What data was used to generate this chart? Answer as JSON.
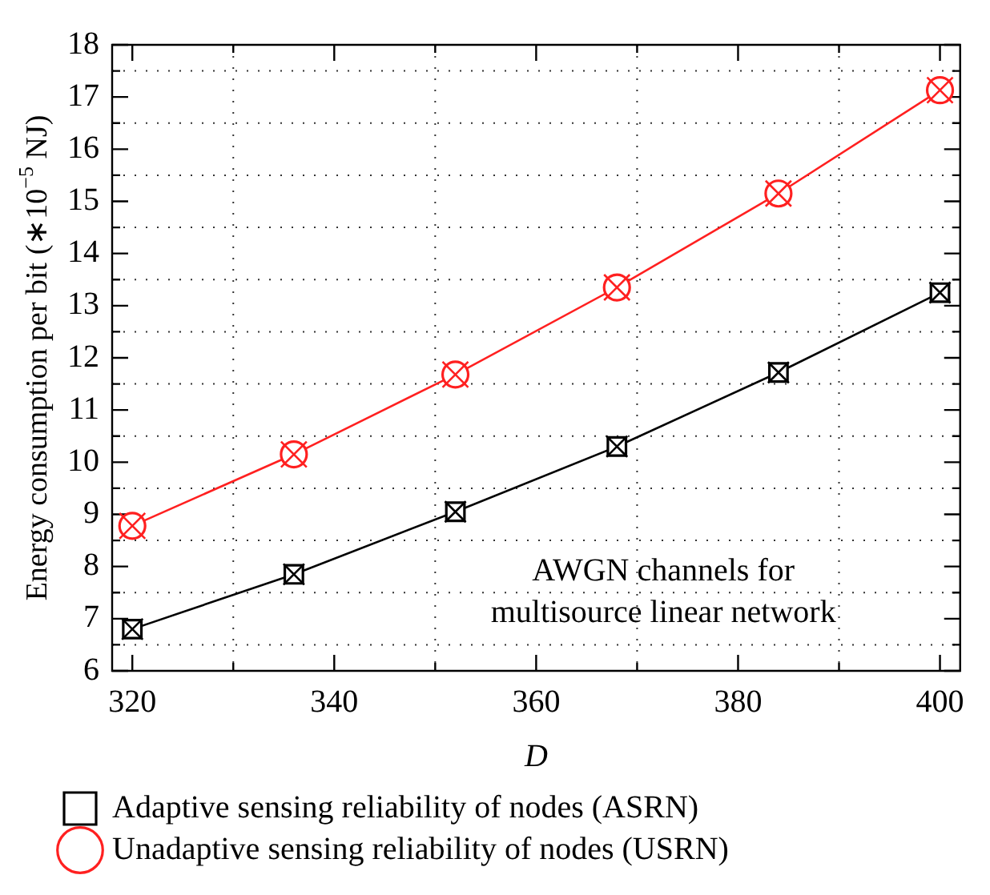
{
  "chart_data": {
    "type": "line",
    "xlabel": "D",
    "ylabel": "Energy consumption per bit (∗10$^{−5}$ NJ)",
    "annotations": [
      "AWGN channels for multisource linear network"
    ],
    "x": [
      320,
      336,
      352,
      368,
      384,
      400
    ],
    "series": [
      {
        "name": "Adaptive sensing reliability of nodes (ASRN)",
        "color": "#000000",
        "marker": "square",
        "values": [
          6.8,
          7.85,
          9.05,
          10.3,
          11.72,
          13.25
        ]
      },
      {
        "name": "Unadaptive sensing reliability of nodes (USRN)",
        "color": "#ff2020",
        "marker": "circle",
        "values": [
          8.78,
          10.15,
          11.68,
          13.35,
          15.15,
          17.13
        ]
      }
    ],
    "xlim": [
      318,
      402
    ],
    "ylim": [
      6,
      18
    ],
    "xticks": [
      320,
      {
        "value": 330,
        "label": null
      },
      340,
      {
        "value": 350,
        "label": null
      },
      360,
      {
        "value": 370,
        "label": null
      },
      380,
      {
        "value": 390,
        "label": null
      },
      400
    ],
    "yticks": [
      6,
      {
        "value": 6.5,
        "label": null
      },
      7,
      {
        "value": 7.5,
        "label": null
      },
      8,
      {
        "value": 8.5,
        "label": null
      },
      9,
      {
        "value": 9.5,
        "label": null
      },
      10,
      {
        "value": 10.5,
        "label": null
      },
      11,
      {
        "value": 11.5,
        "label": null
      },
      12,
      {
        "value": 12.5,
        "label": null
      },
      13,
      {
        "value": 13.5,
        "label": null
      },
      14,
      {
        "value": 14.5,
        "label": null
      },
      15,
      {
        "value": 15.5,
        "label": null
      },
      16,
      {
        "value": 16.5,
        "label": null
      },
      17,
      {
        "value": 17.5,
        "label": null
      },
      18
    ],
    "grid": true,
    "legend": "bottom",
    "line_style": "solid"
  }
}
